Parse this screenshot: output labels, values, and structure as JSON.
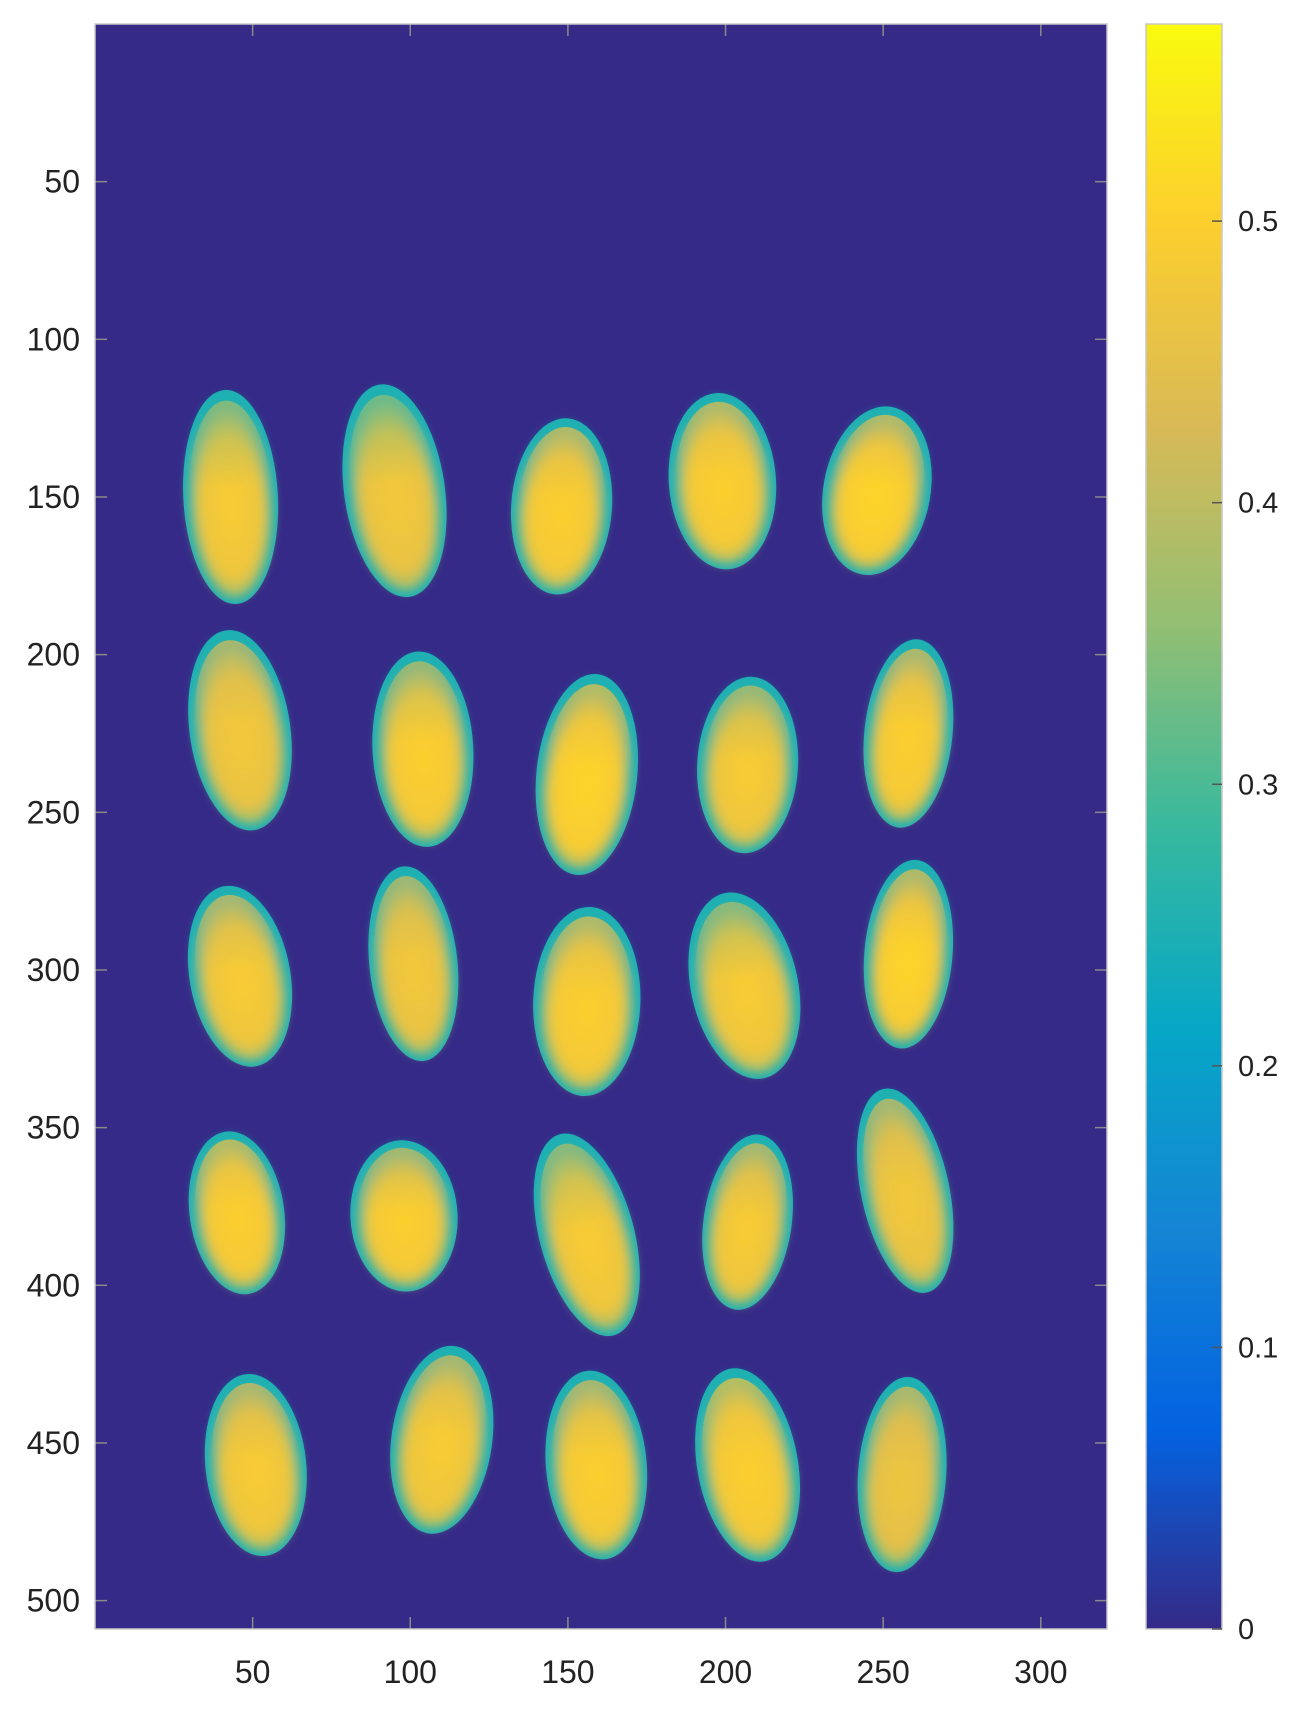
{
  "chart_data": {
    "type": "heatmap",
    "title": "",
    "xlabel": "",
    "ylabel": "",
    "x_range": [
      0,
      321
    ],
    "y_range": [
      0,
      509
    ],
    "y_direction": "top-to-bottom",
    "x_ticks": [
      50,
      100,
      150,
      200,
      250,
      300
    ],
    "x_tick_labels": [
      "50",
      "100",
      "150",
      "200",
      "250",
      "300"
    ],
    "y_ticks": [
      50,
      100,
      150,
      200,
      250,
      300,
      350,
      400,
      450,
      500
    ],
    "y_tick_labels": [
      "50",
      "100",
      "150",
      "200",
      "250",
      "300",
      "350",
      "400",
      "450",
      "500"
    ],
    "background_value": 0,
    "colormap": "parula",
    "colormap_stops": [
      "#352a87",
      "#0363e1",
      "#1485d4",
      "#06a7c6",
      "#38b99e",
      "#92bf73",
      "#d9ba56",
      "#fcce2e",
      "#f9fb0e"
    ],
    "colorbar": {
      "range": [
        0,
        0.57
      ],
      "ticks": [
        0,
        0.1,
        0.2,
        0.3,
        0.4,
        0.5
      ],
      "tick_labels": [
        "0",
        "0.1",
        "0.2",
        "0.3",
        "0.4",
        "0.5"
      ],
      "placement": "right"
    },
    "blobs": [
      {
        "row": 1,
        "col": 1,
        "cx": 43,
        "cy": 150,
        "rx": 15,
        "ry": 34,
        "rotation": -3,
        "edge_value": 0.25,
        "core_value": 0.49,
        "top_value": 0.37
      },
      {
        "row": 1,
        "col": 2,
        "cx": 95,
        "cy": 148,
        "rx": 16,
        "ry": 34,
        "rotation": -8,
        "edge_value": 0.25,
        "core_value": 0.48,
        "top_value": 0.35
      },
      {
        "row": 1,
        "col": 3,
        "cx": 148,
        "cy": 153,
        "rx": 16,
        "ry": 28,
        "rotation": 4,
        "edge_value": 0.25,
        "core_value": 0.5,
        "top_value": 0.44
      },
      {
        "row": 1,
        "col": 4,
        "cx": 199,
        "cy": 145,
        "rx": 17,
        "ry": 28,
        "rotation": -4,
        "edge_value": 0.25,
        "core_value": 0.5,
        "top_value": 0.44
      },
      {
        "row": 1,
        "col": 5,
        "cx": 248,
        "cy": 148,
        "rx": 17,
        "ry": 27,
        "rotation": 10,
        "edge_value": 0.25,
        "core_value": 0.51,
        "top_value": 0.44
      },
      {
        "row": 2,
        "col": 1,
        "cx": 46,
        "cy": 224,
        "rx": 16,
        "ry": 32,
        "rotation": -8,
        "edge_value": 0.25,
        "core_value": 0.48,
        "top_value": 0.42
      },
      {
        "row": 2,
        "col": 2,
        "cx": 104,
        "cy": 230,
        "rx": 16,
        "ry": 31,
        "rotation": -3,
        "edge_value": 0.25,
        "core_value": 0.5,
        "top_value": 0.4
      },
      {
        "row": 2,
        "col": 3,
        "cx": 156,
        "cy": 238,
        "rx": 16,
        "ry": 32,
        "rotation": 6,
        "edge_value": 0.25,
        "core_value": 0.51,
        "top_value": 0.45
      },
      {
        "row": 2,
        "col": 4,
        "cx": 207,
        "cy": 235,
        "rx": 16,
        "ry": 28,
        "rotation": 3,
        "edge_value": 0.25,
        "core_value": 0.49,
        "top_value": 0.4
      },
      {
        "row": 2,
        "col": 5,
        "cx": 258,
        "cy": 225,
        "rx": 14,
        "ry": 30,
        "rotation": 6,
        "edge_value": 0.25,
        "core_value": 0.5,
        "top_value": 0.43
      },
      {
        "row": 3,
        "col": 1,
        "cx": 46,
        "cy": 302,
        "rx": 16,
        "ry": 29,
        "rotation": -10,
        "edge_value": 0.25,
        "core_value": 0.49,
        "top_value": 0.42
      },
      {
        "row": 3,
        "col": 2,
        "cx": 101,
        "cy": 298,
        "rx": 14,
        "ry": 31,
        "rotation": -6,
        "edge_value": 0.25,
        "core_value": 0.48,
        "top_value": 0.41
      },
      {
        "row": 3,
        "col": 3,
        "cx": 156,
        "cy": 310,
        "rx": 17,
        "ry": 30,
        "rotation": 2,
        "edge_value": 0.25,
        "core_value": 0.5,
        "top_value": 0.44
      },
      {
        "row": 3,
        "col": 4,
        "cx": 206,
        "cy": 305,
        "rx": 17,
        "ry": 30,
        "rotation": -12,
        "edge_value": 0.25,
        "core_value": 0.49,
        "top_value": 0.38
      },
      {
        "row": 3,
        "col": 5,
        "cx": 258,
        "cy": 295,
        "rx": 14,
        "ry": 30,
        "rotation": 5,
        "edge_value": 0.25,
        "core_value": 0.51,
        "top_value": 0.44
      },
      {
        "row": 4,
        "col": 1,
        "cx": 45,
        "cy": 377,
        "rx": 15,
        "ry": 26,
        "rotation": -8,
        "edge_value": 0.25,
        "core_value": 0.5,
        "top_value": 0.45
      },
      {
        "row": 4,
        "col": 2,
        "cx": 98,
        "cy": 378,
        "rx": 17,
        "ry": 24,
        "rotation": -3,
        "edge_value": 0.25,
        "core_value": 0.5,
        "top_value": 0.41
      },
      {
        "row": 4,
        "col": 3,
        "cx": 156,
        "cy": 384,
        "rx": 15,
        "ry": 33,
        "rotation": -15,
        "edge_value": 0.25,
        "core_value": 0.49,
        "top_value": 0.38
      },
      {
        "row": 4,
        "col": 4,
        "cx": 207,
        "cy": 380,
        "rx": 14,
        "ry": 28,
        "rotation": 8,
        "edge_value": 0.25,
        "core_value": 0.49,
        "top_value": 0.42
      },
      {
        "row": 4,
        "col": 5,
        "cx": 257,
        "cy": 370,
        "rx": 14,
        "ry": 33,
        "rotation": -12,
        "edge_value": 0.25,
        "core_value": 0.48,
        "top_value": 0.42
      },
      {
        "row": 5,
        "col": 1,
        "cx": 51,
        "cy": 457,
        "rx": 16,
        "ry": 29,
        "rotation": -6,
        "edge_value": 0.25,
        "core_value": 0.49,
        "top_value": 0.43
      },
      {
        "row": 5,
        "col": 2,
        "cx": 110,
        "cy": 449,
        "rx": 16,
        "ry": 30,
        "rotation": 8,
        "edge_value": 0.25,
        "core_value": 0.49,
        "top_value": 0.42
      },
      {
        "row": 5,
        "col": 3,
        "cx": 159,
        "cy": 457,
        "rx": 16,
        "ry": 30,
        "rotation": -5,
        "edge_value": 0.25,
        "core_value": 0.5,
        "top_value": 0.42
      },
      {
        "row": 5,
        "col": 4,
        "cx": 207,
        "cy": 457,
        "rx": 16,
        "ry": 31,
        "rotation": -10,
        "edge_value": 0.25,
        "core_value": 0.5,
        "top_value": 0.46
      },
      {
        "row": 5,
        "col": 5,
        "cx": 256,
        "cy": 460,
        "rx": 14,
        "ry": 31,
        "rotation": 4,
        "edge_value": 0.25,
        "core_value": 0.47,
        "top_value": 0.43
      }
    ]
  }
}
